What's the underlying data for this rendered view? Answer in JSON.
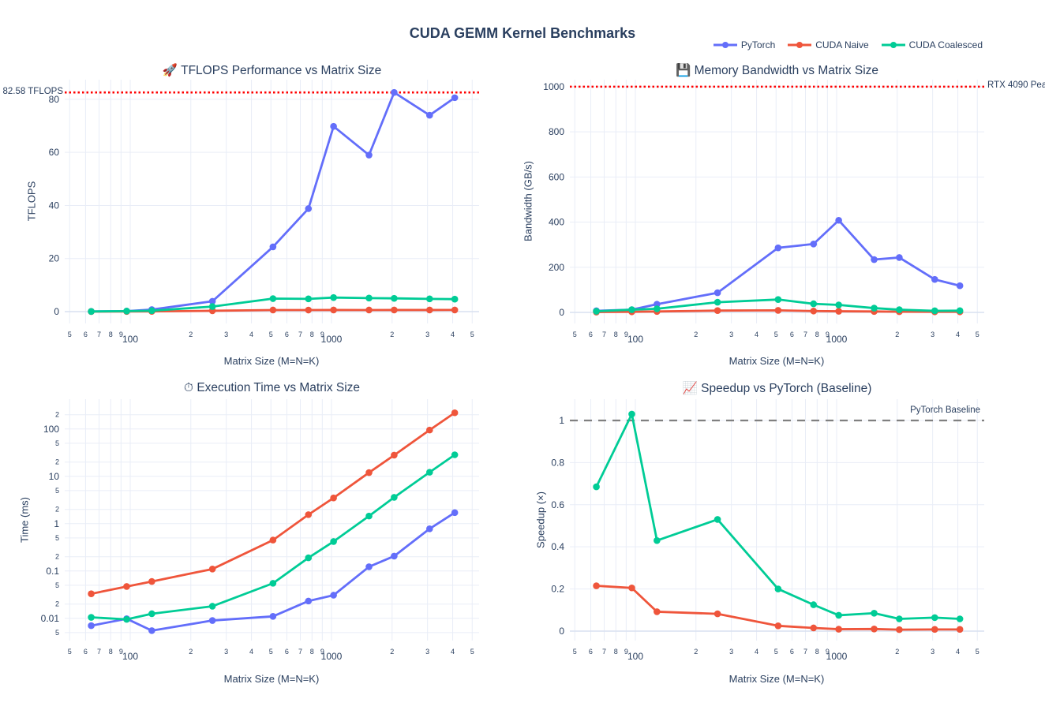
{
  "header": {
    "title": "CUDA GEMM Kernel Benchmarks"
  },
  "legend": {
    "items": [
      {
        "label": "PyTorch",
        "color": "#636EFA"
      },
      {
        "label": "CUDA Naive",
        "color": "#EF553B"
      },
      {
        "label": "CUDA Coalesced",
        "color": "#00CC96"
      }
    ]
  },
  "x_axis": {
    "label": "Matrix Size (M=N=K)",
    "scale": "log",
    "ticks": [
      {
        "v": 50,
        "label": "5"
      },
      {
        "v": 60,
        "label": "6"
      },
      {
        "v": 70,
        "label": "7"
      },
      {
        "v": 80,
        "label": "8"
      },
      {
        "v": 90,
        "label": "9"
      },
      {
        "v": 100,
        "label": "100",
        "major": true
      },
      {
        "v": 200,
        "label": "2"
      },
      {
        "v": 300,
        "label": "3"
      },
      {
        "v": 400,
        "label": "4"
      },
      {
        "v": 500,
        "label": "5"
      },
      {
        "v": 600,
        "label": "6"
      },
      {
        "v": 700,
        "label": "7"
      },
      {
        "v": 800,
        "label": "8"
      },
      {
        "v": 900,
        "label": "9"
      },
      {
        "v": 1000,
        "label": "1000",
        "major": true
      },
      {
        "v": 2000,
        "label": "2"
      },
      {
        "v": 3000,
        "label": "3"
      },
      {
        "v": 4000,
        "label": "4"
      },
      {
        "v": 5000,
        "label": "5"
      }
    ]
  },
  "matrix_sizes": [
    64,
    96,
    128,
    256,
    512,
    768,
    1024,
    1536,
    2048,
    3072,
    4096
  ],
  "chart_data": [
    {
      "id": "tflops",
      "type": "line",
      "title": "🚀 TFLOPS Performance vs Matrix Size",
      "xlabel": "Matrix Size (M=N=K)",
      "ylabel": "TFLOPS",
      "x_scale": "log",
      "y_scale": "linear",
      "xlim": [
        1.6745,
        3.7333
      ],
      "ylim": [
        -4.46,
        87.4
      ],
      "x": [
        64,
        96,
        128,
        256,
        512,
        768,
        1024,
        1536,
        2048,
        3072,
        4096
      ],
      "series": [
        {
          "name": "PyTorch",
          "color": "#636EFA",
          "values": [
            0.08,
            0.19,
            0.76,
            3.9,
            24.4,
            38.8,
            69.8,
            59.0,
            82.58,
            74.0,
            80.6
          ]
        },
        {
          "name": "CUDA Naive",
          "color": "#EF553B",
          "values": [
            0.016,
            0.038,
            0.07,
            0.31,
            0.6,
            0.59,
            0.61,
            0.6,
            0.61,
            0.61,
            0.62
          ]
        },
        {
          "name": "CUDA Coalesced",
          "color": "#00CC96",
          "values": [
            0.05,
            0.19,
            0.34,
            1.9,
            4.9,
            4.8,
            5.3,
            5.1,
            5.0,
            4.8,
            4.7
          ]
        }
      ],
      "y_ticks": [
        {
          "v": 0,
          "label": "0",
          "major": true,
          "zero": true
        },
        {
          "v": 20,
          "label": "20",
          "major": true
        },
        {
          "v": 40,
          "label": "40",
          "major": true
        },
        {
          "v": 60,
          "label": "60",
          "major": true
        },
        {
          "v": 80,
          "label": "80",
          "major": true
        }
      ],
      "ref_line": {
        "y": 82.58,
        "color": "#FF0000",
        "dash": "dot",
        "label": "82.58 TFLOPS",
        "label_position": "outside-left"
      }
    },
    {
      "id": "bandwidth",
      "type": "line",
      "title": "💾 Memory Bandwidth vs Matrix Size",
      "xlabel": "Matrix Size (M=N=K)",
      "ylabel": "Bandwidth (GB/s)",
      "x_scale": "log",
      "y_scale": "linear",
      "xlim": [
        1.6745,
        3.7333
      ],
      "ylim": [
        -49,
        1031
      ],
      "x": [
        64,
        96,
        128,
        256,
        512,
        768,
        1024,
        1536,
        2048,
        3072,
        4096
      ],
      "series": [
        {
          "name": "PyTorch",
          "color": "#636EFA",
          "values": [
            7,
            12,
            36,
            87,
            286,
            303,
            408,
            234,
            243,
            146,
            118
          ]
        },
        {
          "name": "CUDA Naive",
          "color": "#EF553B",
          "values": [
            1.5,
            2.5,
            4,
            8,
            9,
            6,
            5,
            4,
            3,
            2.5,
            2.5
          ]
        },
        {
          "name": "CUDA Coalesced",
          "color": "#00CC96",
          "values": [
            5,
            12,
            16,
            45,
            57,
            38,
            33,
            19,
            12,
            7,
            7.5
          ]
        }
      ],
      "y_ticks": [
        {
          "v": 0,
          "label": "0",
          "major": true,
          "zero": true
        },
        {
          "v": 200,
          "label": "200",
          "major": true
        },
        {
          "v": 400,
          "label": "400",
          "major": true
        },
        {
          "v": 600,
          "label": "600",
          "major": true
        },
        {
          "v": 800,
          "label": "800",
          "major": true
        },
        {
          "v": 1000,
          "label": "1000",
          "major": true
        }
      ],
      "ref_line": {
        "y": 1000,
        "color": "#FF0000",
        "dash": "dot",
        "label": "RTX 4090 Pea",
        "label_position": "outside-right"
      }
    },
    {
      "id": "time",
      "type": "line",
      "title": "⏱ Execution Time vs Matrix Size",
      "xlabel": "Matrix Size (M=N=K)",
      "ylabel": "Time (ms)",
      "x_scale": "log",
      "y_scale": "log",
      "xlim": [
        1.6745,
        3.7333
      ],
      "ylim": [
        -2.47,
        2.63
      ],
      "x": [
        64,
        96,
        128,
        256,
        512,
        768,
        1024,
        1536,
        2048,
        3072,
        4096
      ],
      "series": [
        {
          "name": "PyTorch",
          "color": "#636EFA",
          "values": [
            0.007,
            0.0098,
            0.0055,
            0.009,
            0.011,
            0.0232,
            0.0308,
            0.123,
            0.206,
            0.78,
            1.71
          ]
        },
        {
          "name": "CUDA Naive",
          "color": "#EF553B",
          "values": [
            0.033,
            0.047,
            0.06,
            0.11,
            0.45,
            1.55,
            3.5,
            12,
            28,
            95,
            220
          ]
        },
        {
          "name": "CUDA Coalesced",
          "color": "#00CC96",
          "values": [
            0.0105,
            0.0095,
            0.0125,
            0.018,
            0.055,
            0.19,
            0.42,
            1.45,
            3.6,
            12.2,
            28.5
          ]
        }
      ],
      "y_ticks": [
        {
          "v": 0.005,
          "label": "5"
        },
        {
          "v": 0.01,
          "label": "0.01",
          "major": true
        },
        {
          "v": 0.02,
          "label": "2"
        },
        {
          "v": 0.05,
          "label": "5"
        },
        {
          "v": 0.1,
          "label": "0.1",
          "major": true
        },
        {
          "v": 0.2,
          "label": "2"
        },
        {
          "v": 0.5,
          "label": "5"
        },
        {
          "v": 1,
          "label": "1",
          "major": true
        },
        {
          "v": 2,
          "label": "2"
        },
        {
          "v": 5,
          "label": "5"
        },
        {
          "v": 10,
          "label": "10",
          "major": true
        },
        {
          "v": 20,
          "label": "2"
        },
        {
          "v": 50,
          "label": "5"
        },
        {
          "v": 100,
          "label": "100",
          "major": true
        },
        {
          "v": 200,
          "label": "2"
        }
      ]
    },
    {
      "id": "speedup",
      "type": "line",
      "title": "📈 Speedup vs PyTorch (Baseline)",
      "xlabel": "Matrix Size (M=N=K)",
      "ylabel": "Speedup (×)",
      "x_scale": "log",
      "y_scale": "linear",
      "xlim": [
        1.6745,
        3.7333
      ],
      "ylim": [
        -0.045,
        1.101
      ],
      "x": [
        64,
        96,
        128,
        256,
        512,
        768,
        1024,
        1536,
        2048,
        3072,
        4096
      ],
      "series": [
        {
          "name": "CUDA Naive",
          "color": "#EF553B",
          "values": [
            0.215,
            0.205,
            0.092,
            0.082,
            0.025,
            0.015,
            0.009,
            0.01,
            0.007,
            0.008,
            0.008
          ]
        },
        {
          "name": "CUDA Coalesced",
          "color": "#00CC96",
          "values": [
            0.685,
            1.03,
            0.43,
            0.53,
            0.2,
            0.125,
            0.075,
            0.085,
            0.058,
            0.064,
            0.058
          ]
        }
      ],
      "y_ticks": [
        {
          "v": 0,
          "label": "0",
          "major": true,
          "zero": true
        },
        {
          "v": 0.2,
          "label": "0.2",
          "major": true
        },
        {
          "v": 0.4,
          "label": "0.4",
          "major": true
        },
        {
          "v": 0.6,
          "label": "0.6",
          "major": true
        },
        {
          "v": 0.8,
          "label": "0.8",
          "major": true
        },
        {
          "v": 1,
          "label": "1",
          "major": true
        }
      ],
      "ref_line": {
        "y": 1,
        "color": "#808080",
        "dash": "dash",
        "label": "PyTorch Baseline",
        "label_position": "inside-right"
      }
    }
  ],
  "colors": {
    "grid": "#E9EDF7",
    "zeroline": "#D9E1F0",
    "tick_text": "#2a3f5f",
    "peak_line": "#FF0000",
    "baseline_line": "#808080"
  }
}
